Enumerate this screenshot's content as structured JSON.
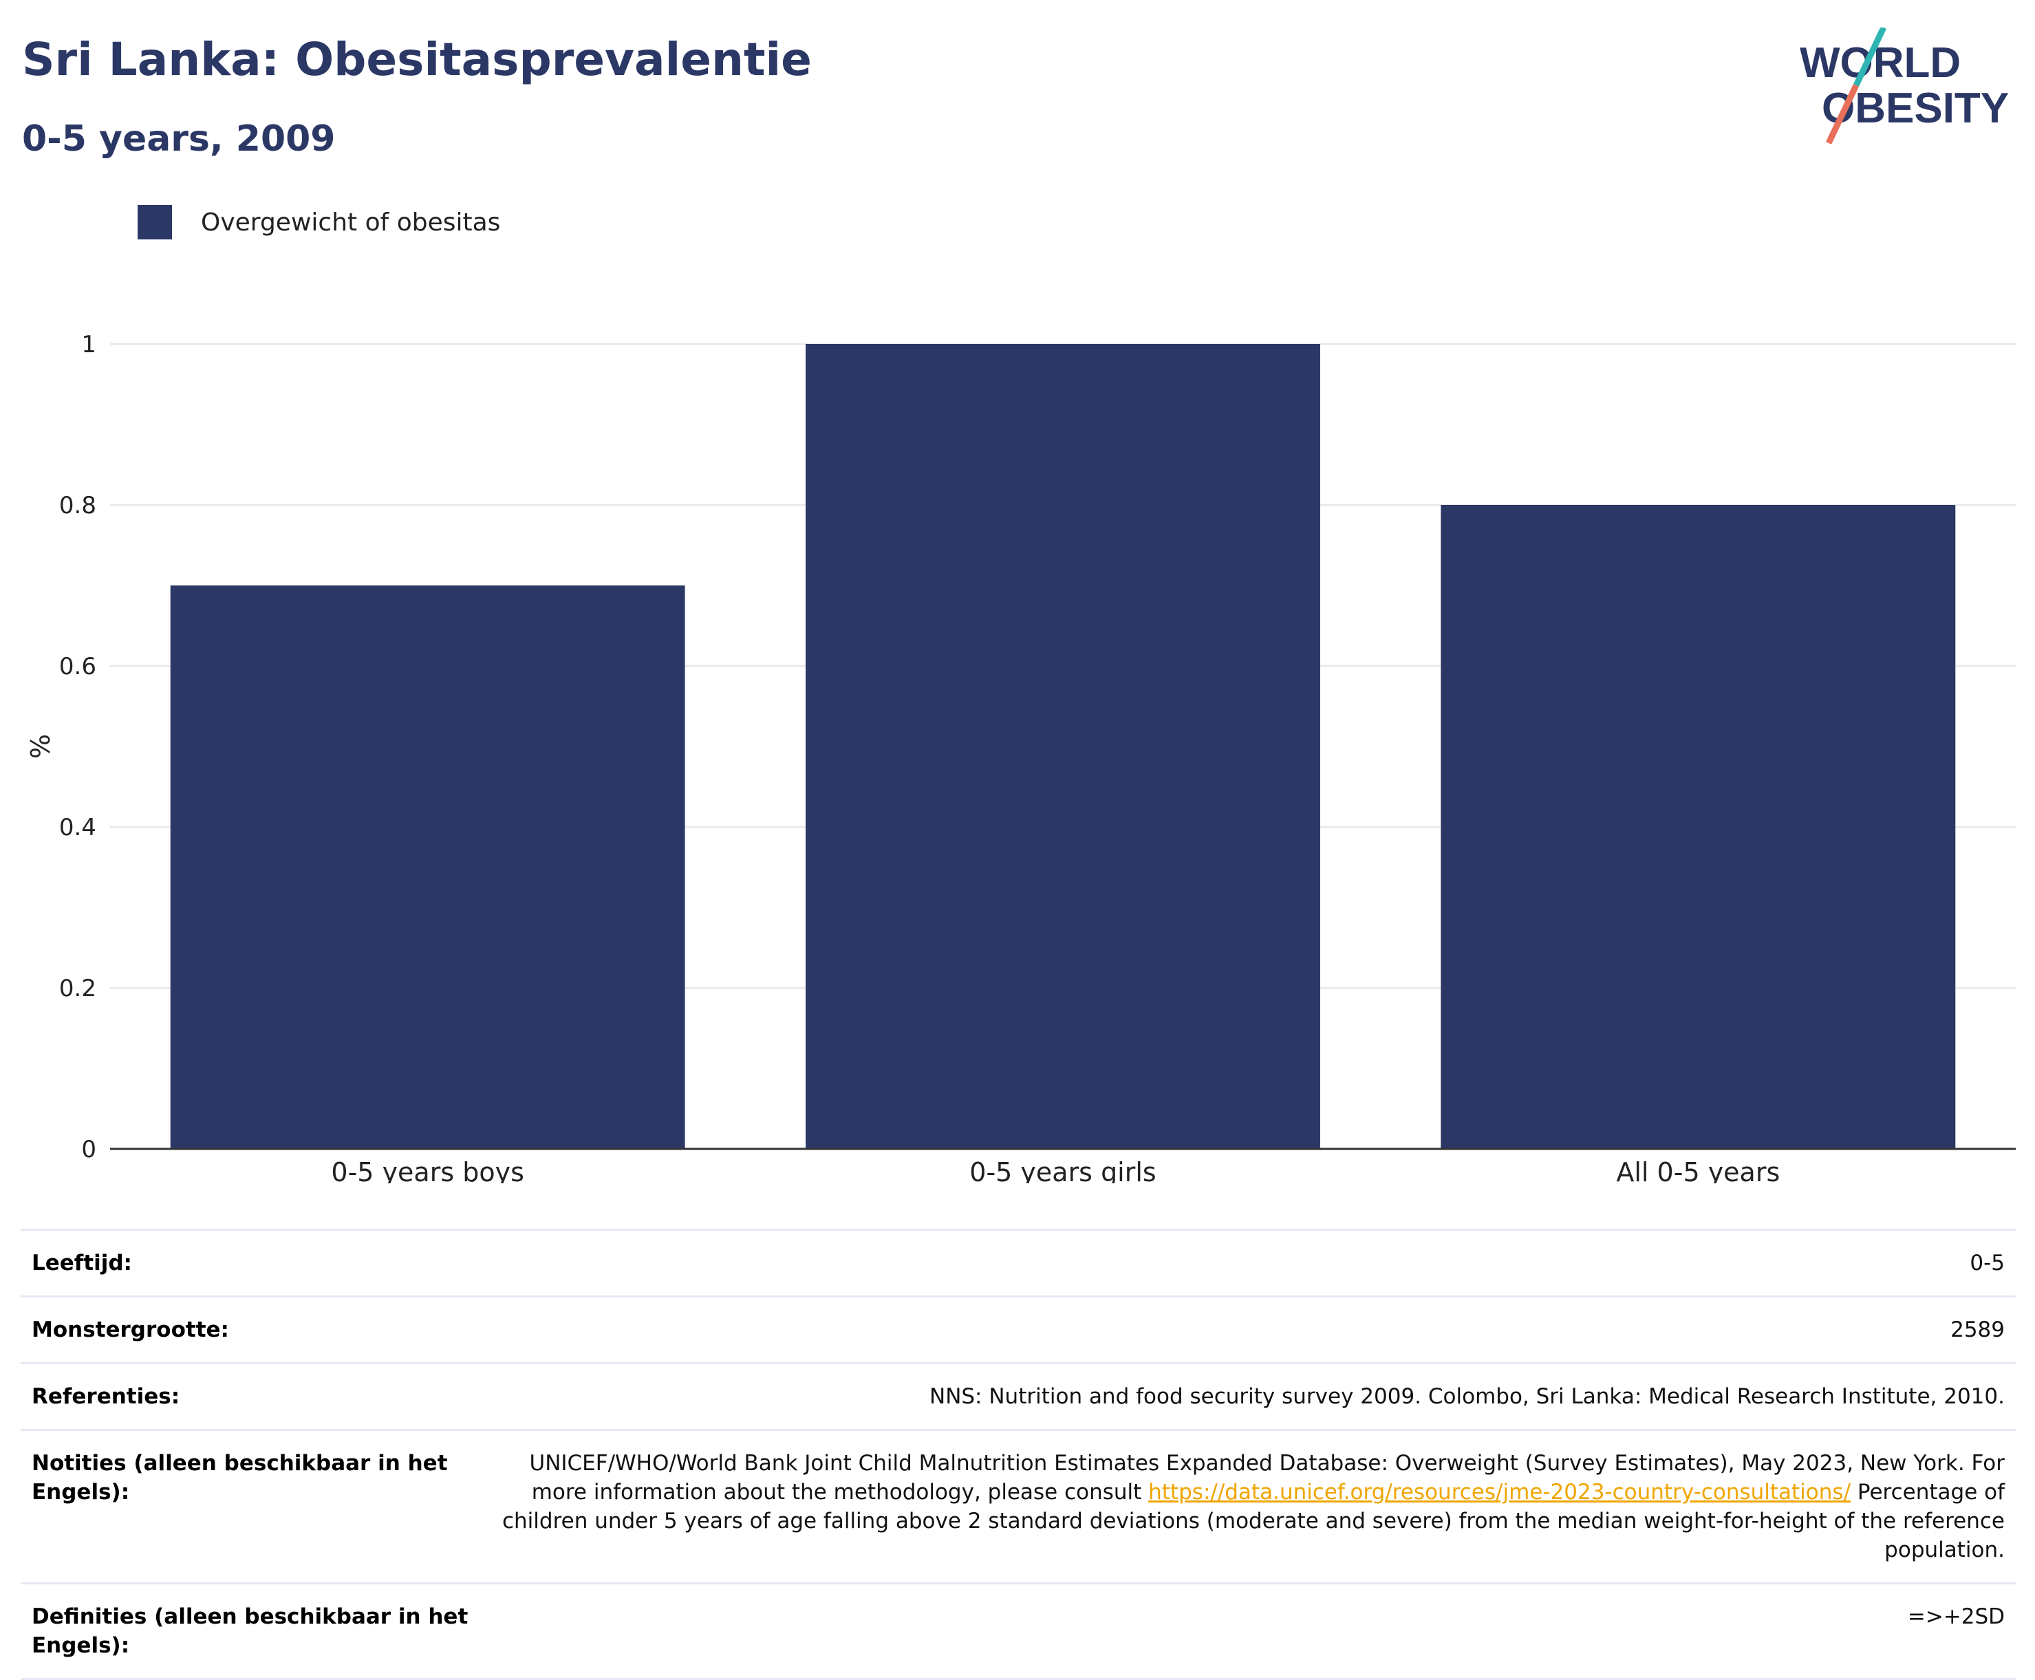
{
  "header": {
    "title": "Sri Lanka: Obesitasprevalentie",
    "subtitle": "0-5 years, 2009",
    "logo_line1": "WORLD",
    "logo_line2": "OBESITY"
  },
  "colors": {
    "bar": "#2b3765",
    "title": "#2b3765",
    "logo_teal": "#2fb4b4",
    "logo_coral": "#e8705a",
    "link": "#f0a500"
  },
  "legend": {
    "label": "Overgewicht of obesitas"
  },
  "chart_data": {
    "type": "bar",
    "title": "Sri Lanka: Obesitasprevalentie",
    "subtitle": "0-5 years, 2009",
    "categories": [
      "0-5 years boys",
      "0-5 years girls",
      "All 0-5 years"
    ],
    "series": [
      {
        "name": "Overgewicht of obesitas",
        "values": [
          0.7,
          1.0,
          0.8
        ]
      }
    ],
    "ylabel": "%",
    "xlabel": "",
    "ylim": [
      0,
      1.0
    ],
    "yticks": [
      "0",
      "0.2",
      "0.4",
      "0.6",
      "0.8",
      "1"
    ],
    "grid": true,
    "legend_position": "top-left"
  },
  "meta": {
    "rows": [
      {
        "key": "Leeftijd:",
        "value": "0-5"
      },
      {
        "key": "Monstergrootte:",
        "value": "2589"
      },
      {
        "key": "Referenties:",
        "value": "NNS: Nutrition and food security survey 2009. Colombo, Sri Lanka: Medical Research Institute, 2010."
      },
      {
        "key": "Notities (alleen beschikbaar in het Engels):",
        "value_pre": "UNICEF/WHO/World Bank Joint Child Malnutrition Estimates Expanded Database: Overweight (Survey Estimates), May 2023, New York. For more information about the methodology, please consult ",
        "link": "https://data.unicef.org/resources/jme-2023-country-consultations/",
        "value_post": " Percentage of children under 5 years of age falling above 2 standard deviations (moderate and severe) from the median weight-for-height of the reference population."
      },
      {
        "key": "Definities (alleen beschikbaar in het Engels):",
        "value": "=>+2SD"
      }
    ]
  }
}
